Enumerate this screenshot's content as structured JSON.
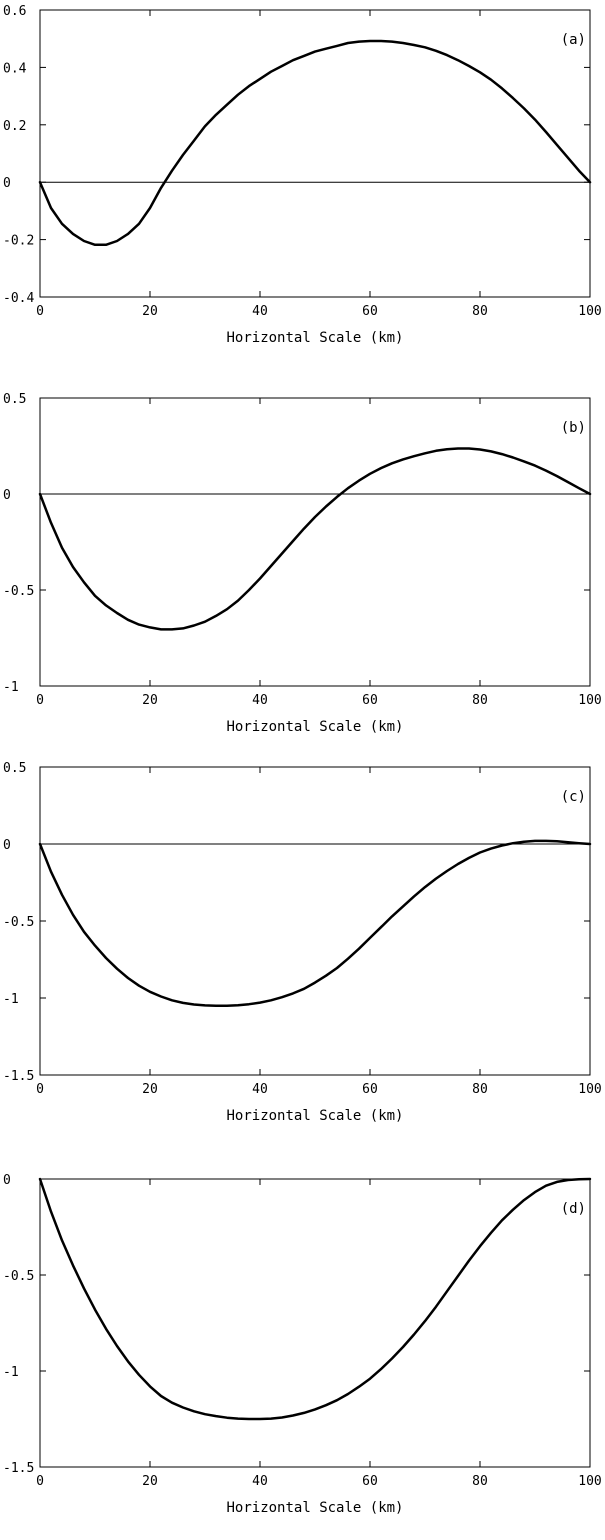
{
  "figure": {
    "line_color": "#000000",
    "background": "#ffffff",
    "grid": false
  },
  "chart_data": [
    {
      "type": "line",
      "panel_label": "(a)",
      "legend": "none",
      "xlabel": "Horizontal Scale (km)",
      "ylabel": "",
      "xlim": [
        0,
        100
      ],
      "ylim": [
        -0.4,
        0.6
      ],
      "xticks": [
        0,
        20,
        40,
        60,
        80,
        100
      ],
      "xtick_labels": [
        "0",
        "20",
        "40",
        "60",
        "80",
        "100"
      ],
      "yticks": [
        -0.4,
        -0.2,
        0,
        0.2,
        0.4,
        0.6
      ],
      "ytick_labels": [
        "-0.4",
        "-0.2",
        "0",
        "0.2",
        "0.4",
        "0.6"
      ],
      "zero_line": true,
      "series": [
        {
          "x": [
            0,
            2,
            4,
            6,
            8,
            10,
            12,
            14,
            16,
            18,
            20,
            22,
            24,
            26,
            28,
            30,
            32,
            34,
            36,
            38,
            40,
            42,
            44,
            46,
            48,
            50,
            52,
            54,
            56,
            58,
            60,
            62,
            64,
            66,
            68,
            70,
            72,
            74,
            76,
            78,
            80,
            82,
            84,
            86,
            88,
            90,
            92,
            94,
            96,
            98,
            100
          ],
          "y": [
            0,
            -0.09,
            -0.145,
            -0.18,
            -0.205,
            -0.218,
            -0.218,
            -0.205,
            -0.18,
            -0.145,
            -0.09,
            -0.02,
            0.04,
            0.095,
            0.145,
            0.195,
            0.235,
            0.27,
            0.305,
            0.335,
            0.36,
            0.385,
            0.405,
            0.425,
            0.44,
            0.455,
            0.465,
            0.475,
            0.485,
            0.49,
            0.492,
            0.492,
            0.49,
            0.485,
            0.478,
            0.47,
            0.458,
            0.443,
            0.425,
            0.405,
            0.383,
            0.357,
            0.327,
            0.293,
            0.257,
            0.218,
            0.175,
            0.13,
            0.085,
            0.04,
            0
          ]
        }
      ]
    },
    {
      "type": "line",
      "panel_label": "(b)",
      "legend": "none",
      "xlabel": "Horizontal Scale (km)",
      "ylabel": "",
      "xlim": [
        0,
        100
      ],
      "ylim": [
        -1,
        0.5
      ],
      "xticks": [
        0,
        20,
        40,
        60,
        80,
        100
      ],
      "xtick_labels": [
        "0",
        "20",
        "40",
        "60",
        "80",
        "100"
      ],
      "yticks": [
        -1,
        -0.5,
        0,
        0.5
      ],
      "ytick_labels": [
        "-1",
        "-0.5",
        "0",
        "0.5"
      ],
      "zero_line": true,
      "series": [
        {
          "x": [
            0,
            2,
            4,
            6,
            8,
            10,
            12,
            14,
            16,
            18,
            20,
            22,
            24,
            26,
            28,
            30,
            32,
            34,
            36,
            38,
            40,
            42,
            44,
            46,
            48,
            50,
            52,
            54,
            56,
            58,
            60,
            62,
            64,
            66,
            68,
            70,
            72,
            74,
            76,
            78,
            80,
            82,
            84,
            86,
            88,
            90,
            92,
            94,
            96,
            98,
            100
          ],
          "y": [
            0,
            -0.15,
            -0.28,
            -0.38,
            -0.46,
            -0.53,
            -0.58,
            -0.62,
            -0.655,
            -0.68,
            -0.695,
            -0.705,
            -0.705,
            -0.7,
            -0.685,
            -0.665,
            -0.635,
            -0.6,
            -0.555,
            -0.5,
            -0.44,
            -0.375,
            -0.31,
            -0.245,
            -0.18,
            -0.12,
            -0.065,
            -0.015,
            0.03,
            0.07,
            0.105,
            0.135,
            0.16,
            0.18,
            0.197,
            0.212,
            0.225,
            0.233,
            0.237,
            0.237,
            0.232,
            0.222,
            0.208,
            0.19,
            0.17,
            0.148,
            0.122,
            0.093,
            0.062,
            0.03,
            0
          ]
        }
      ]
    },
    {
      "type": "line",
      "panel_label": "(c)",
      "legend": "none",
      "xlabel": "Horizontal Scale (km)",
      "ylabel": "",
      "xlim": [
        0,
        100
      ],
      "ylim": [
        -1.5,
        0.5
      ],
      "xticks": [
        0,
        20,
        40,
        60,
        80,
        100
      ],
      "xtick_labels": [
        "0",
        "20",
        "40",
        "60",
        "80",
        "100"
      ],
      "yticks": [
        -1.5,
        -1,
        -0.5,
        0,
        0.5
      ],
      "ytick_labels": [
        "-1.5",
        "-1",
        "-0.5",
        "0",
        "0.5"
      ],
      "zero_line": true,
      "series": [
        {
          "x": [
            0,
            2,
            4,
            6,
            8,
            10,
            12,
            14,
            16,
            18,
            20,
            22,
            24,
            26,
            28,
            30,
            32,
            34,
            36,
            38,
            40,
            42,
            44,
            46,
            48,
            50,
            52,
            54,
            56,
            58,
            60,
            62,
            64,
            66,
            68,
            70,
            72,
            74,
            76,
            78,
            80,
            82,
            84,
            86,
            88,
            90,
            92,
            94,
            96,
            98,
            100
          ],
          "y": [
            0,
            -0.18,
            -0.33,
            -0.46,
            -0.57,
            -0.66,
            -0.74,
            -0.81,
            -0.87,
            -0.92,
            -0.96,
            -0.99,
            -1.015,
            -1.032,
            -1.042,
            -1.048,
            -1.05,
            -1.05,
            -1.047,
            -1.04,
            -1.03,
            -1.015,
            -0.995,
            -0.97,
            -0.94,
            -0.9,
            -0.855,
            -0.805,
            -0.745,
            -0.68,
            -0.61,
            -0.54,
            -0.47,
            -0.405,
            -0.34,
            -0.28,
            -0.225,
            -0.175,
            -0.13,
            -0.09,
            -0.055,
            -0.03,
            -0.01,
            0.005,
            0.015,
            0.02,
            0.02,
            0.018,
            0.012,
            0.005,
            0
          ]
        }
      ]
    },
    {
      "type": "line",
      "panel_label": "(d)",
      "legend": "none",
      "xlabel": "Horizontal Scale (km)",
      "ylabel": "",
      "xlim": [
        0,
        100
      ],
      "ylim": [
        -1.5,
        0
      ],
      "xticks": [
        0,
        20,
        40,
        60,
        80,
        100
      ],
      "xtick_labels": [
        "0",
        "20",
        "40",
        "60",
        "80",
        "100"
      ],
      "yticks": [
        -1.5,
        -1,
        -0.5,
        0
      ],
      "ytick_labels": [
        "-1.5",
        "-1",
        "-0.5",
        "0"
      ],
      "zero_line": false,
      "series": [
        {
          "x": [
            0,
            2,
            4,
            6,
            8,
            10,
            12,
            14,
            16,
            18,
            20,
            22,
            24,
            26,
            28,
            30,
            32,
            34,
            36,
            38,
            40,
            42,
            44,
            46,
            48,
            50,
            52,
            54,
            56,
            58,
            60,
            62,
            64,
            66,
            68,
            70,
            72,
            74,
            76,
            78,
            80,
            82,
            84,
            86,
            88,
            90,
            92,
            94,
            96,
            98,
            100
          ],
          "y": [
            0,
            -0.17,
            -0.32,
            -0.45,
            -0.57,
            -0.68,
            -0.78,
            -0.87,
            -0.95,
            -1.02,
            -1.08,
            -1.13,
            -1.165,
            -1.19,
            -1.21,
            -1.225,
            -1.235,
            -1.243,
            -1.248,
            -1.25,
            -1.25,
            -1.248,
            -1.242,
            -1.232,
            -1.218,
            -1.2,
            -1.178,
            -1.152,
            -1.12,
            -1.082,
            -1.04,
            -0.99,
            -0.935,
            -0.875,
            -0.81,
            -0.74,
            -0.665,
            -0.585,
            -0.505,
            -0.425,
            -0.35,
            -0.28,
            -0.215,
            -0.16,
            -0.11,
            -0.068,
            -0.035,
            -0.015,
            -0.005,
            -0.001,
            0
          ]
        }
      ]
    }
  ]
}
